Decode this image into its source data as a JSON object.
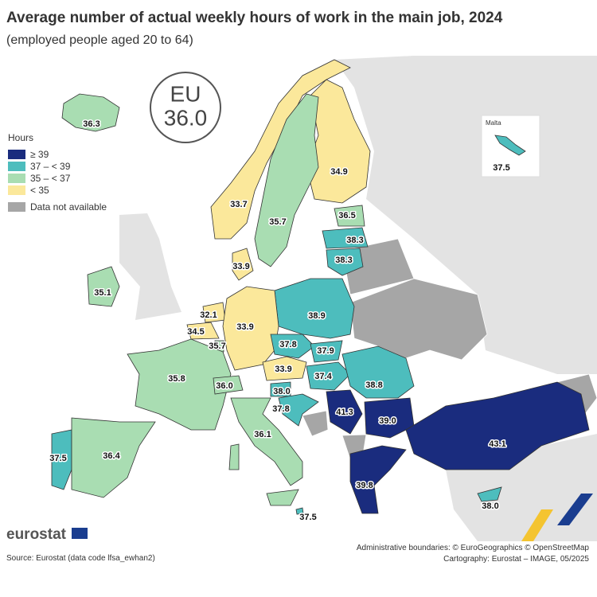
{
  "title": "Average number of actual weekly hours of work in the main job, 2024",
  "subtitle": "(employed people aged 20 to 64)",
  "eu_badge": {
    "label": "EU",
    "value": "36.0"
  },
  "legend": {
    "title": "Hours",
    "items": [
      {
        "label": "≥ 39",
        "color": "#1a2c7e"
      },
      {
        "label": "37 – < 39",
        "color": "#4dbdbd"
      },
      {
        "label": "35 – < 37",
        "color": "#a9ddb2"
      },
      {
        "label": "< 35",
        "color": "#fbe89b"
      },
      {
        "label": "Data not available",
        "color": "#a6a6a6"
      }
    ]
  },
  "regions": [
    {
      "label": "36.3",
      "color": "#a9ddb2"
    },
    {
      "label": "34.9",
      "color": "#fbe89b"
    },
    {
      "label": "33.7",
      "color": "#fbe89b"
    },
    {
      "label": "35.7",
      "color": "#a9ddb2"
    },
    {
      "label": "36.5",
      "color": "#a9ddb2"
    },
    {
      "label": "38.3",
      "color": "#4dbdbd"
    },
    {
      "label": "38.3",
      "color": "#4dbdbd"
    },
    {
      "label": "33.9",
      "color": "#fbe89b"
    },
    {
      "label": "35.1",
      "color": "#a9ddb2"
    },
    {
      "label": "38.9",
      "color": "#4dbdbd"
    },
    {
      "label": "32.1",
      "color": "#fbe89b"
    },
    {
      "label": "34.5",
      "color": "#fbe89b"
    },
    {
      "label": "35.7",
      "color": "#a9ddb2"
    },
    {
      "label": "33.9",
      "color": "#fbe89b"
    },
    {
      "label": "37.8",
      "color": "#4dbdbd"
    },
    {
      "label": "37.9",
      "color": "#4dbdbd"
    },
    {
      "label": "33.9",
      "color": "#fbe89b"
    },
    {
      "label": "37.4",
      "color": "#4dbdbd"
    },
    {
      "label": "38.8",
      "color": "#4dbdbd"
    },
    {
      "label": "35.8",
      "color": "#a9ddb2"
    },
    {
      "label": "36.0",
      "color": "#a9ddb2"
    },
    {
      "label": "38.0",
      "color": "#4dbdbd"
    },
    {
      "label": "37.8",
      "color": "#4dbdbd"
    },
    {
      "label": "41.3",
      "color": "#1a2c7e"
    },
    {
      "label": "39.0",
      "color": "#1a2c7e"
    },
    {
      "label": "36.1",
      "color": "#a9ddb2"
    },
    {
      "label": "37.5",
      "color": "#4dbdbd"
    },
    {
      "label": "36.4",
      "color": "#a9ddb2"
    },
    {
      "label": "39.8",
      "color": "#1a2c7e"
    },
    {
      "label": "43.1",
      "color": "#1a2c7e"
    },
    {
      "label": "38.0",
      "color": "#4dbdbd"
    },
    {
      "label": "37.5",
      "color": "#4dbdbd"
    }
  ],
  "inset": {
    "title": "Malta",
    "label": "37.5",
    "color": "#4dbdbd"
  },
  "footer": {
    "logo": "eurostat",
    "source": "Source: Eurostat (data code lfsa_ewhan2)",
    "boundaries": "Administrative boundaries: © EuroGeographics © OpenStreetMap",
    "cartography": "Cartography: Eurostat – IMAGE, 05/2025"
  }
}
